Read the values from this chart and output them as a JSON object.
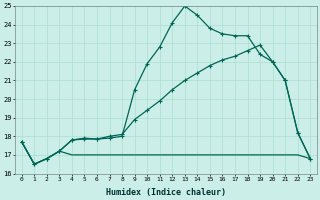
{
  "xlabel": "Humidex (Indice chaleur)",
  "bg_color": "#cceee8",
  "grid_color": "#aaddcc",
  "line_color": "#006655",
  "xlim": [
    -0.5,
    23.5
  ],
  "ylim": [
    16,
    25
  ],
  "xticks": [
    0,
    1,
    2,
    3,
    4,
    5,
    6,
    7,
    8,
    9,
    10,
    11,
    12,
    13,
    14,
    15,
    16,
    17,
    18,
    19,
    20,
    21,
    22,
    23
  ],
  "yticks": [
    16,
    17,
    18,
    19,
    20,
    21,
    22,
    23,
    24,
    25
  ],
  "series1_x": [
    0,
    1,
    2,
    3,
    4,
    5,
    6,
    7,
    8,
    9,
    10,
    11,
    12,
    13,
    14,
    15,
    16,
    17,
    18,
    19,
    20,
    21,
    22,
    23
  ],
  "series1_y": [
    17.7,
    16.5,
    16.8,
    17.2,
    17.8,
    17.9,
    17.85,
    17.9,
    18.0,
    20.5,
    21.9,
    22.8,
    24.1,
    25.0,
    24.5,
    23.8,
    23.5,
    23.4,
    23.4,
    22.4,
    22.0,
    21.0,
    18.2,
    16.8
  ],
  "series2_x": [
    0,
    1,
    2,
    3,
    4,
    5,
    6,
    7,
    8,
    9,
    10,
    11,
    12,
    13,
    14,
    15,
    16,
    17,
    18,
    19,
    20,
    21,
    22,
    23
  ],
  "series2_y": [
    17.7,
    16.5,
    16.8,
    17.2,
    17.8,
    17.85,
    17.85,
    18.0,
    18.1,
    18.9,
    19.4,
    19.9,
    20.5,
    21.0,
    21.4,
    21.8,
    22.1,
    22.3,
    22.6,
    22.9,
    22.0,
    21.0,
    18.2,
    16.8
  ],
  "series3_x": [
    0,
    1,
    2,
    3,
    4,
    5,
    6,
    7,
    8,
    9,
    10,
    11,
    12,
    13,
    14,
    15,
    16,
    17,
    18,
    19,
    20,
    21,
    22,
    23
  ],
  "series3_y": [
    17.7,
    16.5,
    16.8,
    17.2,
    17.0,
    17.0,
    17.0,
    17.0,
    17.0,
    17.0,
    17.0,
    17.0,
    17.0,
    17.0,
    17.0,
    17.0,
    17.0,
    17.0,
    17.0,
    17.0,
    17.0,
    17.0,
    17.0,
    16.8
  ]
}
